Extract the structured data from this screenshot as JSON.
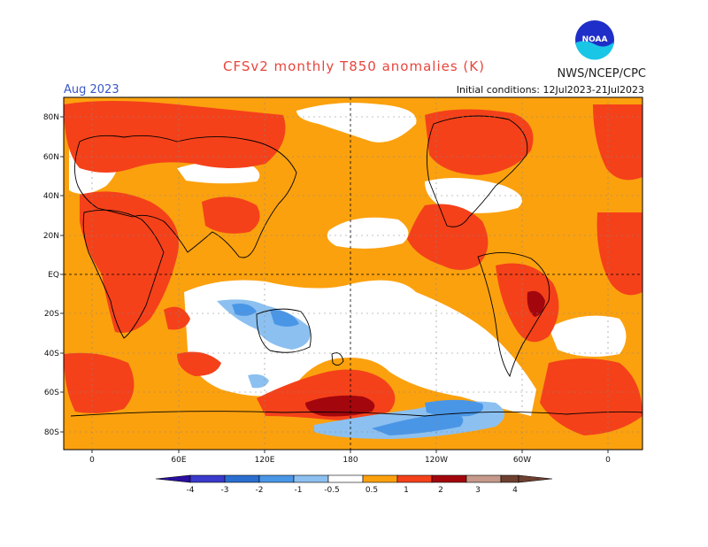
{
  "header": {
    "title": "CFSv2 monthly T850 anomalies (K)",
    "agency": "NWS/NCEP/CPC",
    "month": "Aug 2023",
    "initial_conditions": "Initial conditions: 12Jul2023-21Jul2023",
    "logo_text": "NOAA"
  },
  "axes": {
    "lat_labels": [
      "80N",
      "60N",
      "40N",
      "20N",
      "EQ",
      "20S",
      "40S",
      "60S",
      "80S"
    ],
    "lon_labels": [
      "0",
      "60E",
      "120E",
      "180",
      "120W",
      "60W",
      "0"
    ]
  },
  "colorbar": {
    "labels": [
      "-4",
      "-3",
      "-2",
      "-1",
      "-0.5",
      "0.5",
      "1",
      "2",
      "3",
      "4"
    ],
    "colors": {
      "lt_minus4": "#2a0fa0",
      "m4_m3": "#3a3acc",
      "m3_m2": "#2a6ed0",
      "m2_m1": "#4a96e6",
      "m1_m05": "#8cc0f0",
      "neutral": "#ffffff",
      "p05_p1": "#fba10e",
      "p1_p2": "#f4411a",
      "p2_p3": "#a3070d",
      "p3_p4": "#c6998a",
      "gt_p4": "#6e4030"
    }
  }
}
